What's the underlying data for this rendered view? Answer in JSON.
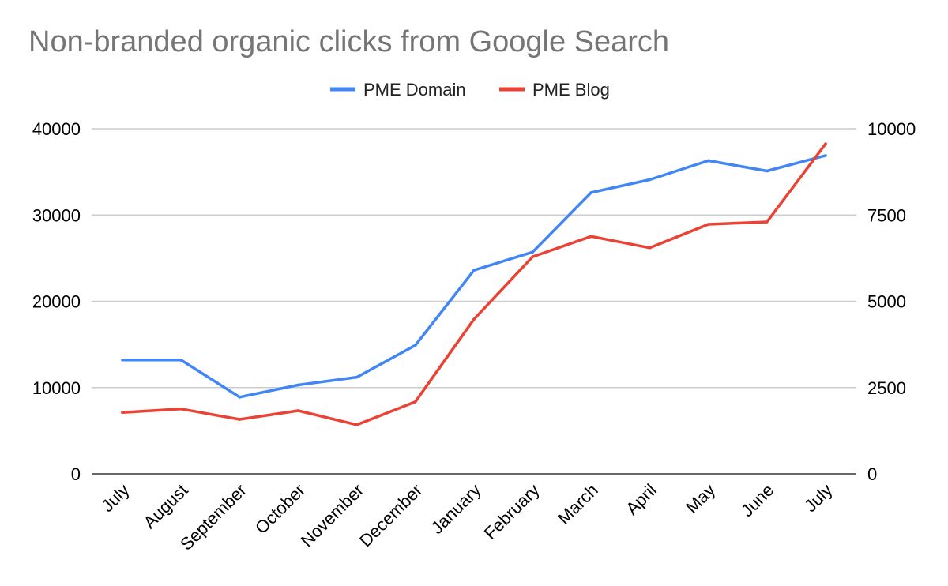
{
  "chart_data": {
    "type": "line",
    "title": "Non-branded organic clicks from Google Search",
    "categories": [
      "July",
      "August",
      "September",
      "October",
      "November",
      "December",
      "January",
      "February",
      "March",
      "April",
      "May",
      "June",
      "July"
    ],
    "series": [
      {
        "name": "PME Domain",
        "axis": "left",
        "color": "#4285f4",
        "values": [
          13200,
          13200,
          8900,
          10300,
          11200,
          14900,
          23600,
          25700,
          32600,
          34100,
          36300,
          35100,
          36900
        ]
      },
      {
        "name": "PME Blog",
        "axis": "right",
        "color": "#ea4335",
        "values": [
          1780,
          1880,
          1580,
          1830,
          1420,
          2090,
          4480,
          6290,
          6880,
          6550,
          7230,
          7300,
          9560
        ]
      }
    ],
    "y_left": {
      "min": 0,
      "max": 40000,
      "ticks": [
        "0",
        "10000",
        "20000",
        "30000",
        "40000"
      ]
    },
    "y_right": {
      "min": 0,
      "max": 10000,
      "ticks": [
        "0",
        "2500",
        "5000",
        "7500",
        "10000"
      ]
    },
    "grid": true,
    "legend_position": "top-center"
  }
}
